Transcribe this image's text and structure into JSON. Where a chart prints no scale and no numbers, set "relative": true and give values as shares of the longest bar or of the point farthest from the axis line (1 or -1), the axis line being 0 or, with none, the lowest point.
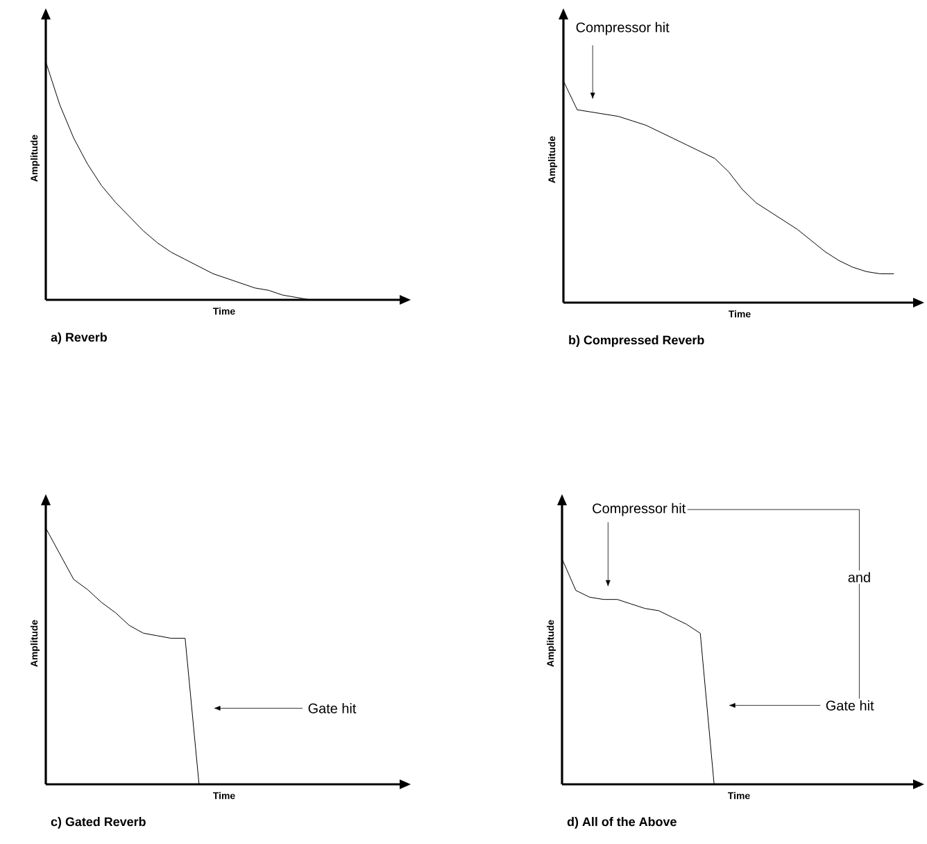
{
  "chart_data": [
    {
      "type": "line",
      "title": "a) Reverb",
      "xlabel": "Time",
      "ylabel": "Amplitude",
      "relative": true,
      "color": "#000000",
      "categories": [
        null,
        null,
        null,
        null,
        null,
        null,
        null,
        null,
        null,
        null,
        null,
        null,
        null,
        null,
        null,
        null,
        null,
        null,
        null,
        null,
        null,
        null,
        null,
        null,
        null,
        null
      ],
      "values": [
        1.0,
        0.82,
        0.68,
        0.57,
        0.48,
        0.41,
        0.35,
        0.29,
        0.24,
        0.2,
        0.17,
        0.14,
        0.11,
        0.09,
        0.07,
        0.05,
        0.04,
        0.02,
        0.01,
        0.0,
        null,
        null,
        null,
        null,
        null,
        null
      ]
    },
    {
      "type": "line",
      "title": "b) Compressed Reverb",
      "xlabel": "Time",
      "ylabel": "Amplitude",
      "relative": true,
      "color": "#000000",
      "categories": [
        null,
        null,
        null,
        null,
        null,
        null,
        null,
        null,
        null,
        null,
        null,
        null,
        null,
        null,
        null,
        null,
        null,
        null,
        null,
        null,
        null,
        null,
        null,
        null,
        null,
        null
      ],
      "values": [
        1.0,
        0.87,
        0.86,
        0.85,
        0.84,
        0.82,
        0.8,
        0.77,
        0.74,
        0.71,
        0.68,
        0.65,
        0.59,
        0.51,
        0.45,
        0.41,
        0.37,
        0.33,
        0.28,
        0.23,
        0.19,
        0.16,
        0.14,
        0.13,
        0.13,
        null
      ],
      "annotations": [
        "Compressor hit"
      ]
    },
    {
      "type": "line",
      "title": "c) Gated Reverb",
      "xlabel": "Time",
      "ylabel": "Amplitude",
      "relative": true,
      "color": "#000000",
      "categories": [
        null,
        null,
        null,
        null,
        null,
        null,
        null,
        null,
        null,
        null,
        null,
        null,
        null,
        null,
        null,
        null,
        null,
        null,
        null,
        null,
        null,
        null,
        null,
        null,
        null,
        null
      ],
      "values": [
        1.0,
        0.9,
        0.8,
        0.76,
        0.71,
        0.67,
        0.62,
        0.59,
        0.58,
        0.57,
        0.57,
        0.0,
        null,
        null,
        null,
        null,
        null,
        null,
        null,
        null,
        null,
        null,
        null,
        null,
        null,
        null
      ],
      "annotations": [
        "Gate hit"
      ]
    },
    {
      "type": "line",
      "title": "d) All of the Above",
      "xlabel": "Time",
      "ylabel": "Amplitude",
      "relative": true,
      "color": "#000000",
      "categories": [
        null,
        null,
        null,
        null,
        null,
        null,
        null,
        null,
        null,
        null,
        null,
        null,
        null,
        null,
        null,
        null,
        null,
        null,
        null,
        null,
        null,
        null,
        null,
        null,
        null,
        null
      ],
      "values": [
        1.0,
        0.86,
        0.83,
        0.82,
        0.82,
        0.8,
        0.78,
        0.77,
        0.74,
        0.71,
        0.67,
        0.0,
        null,
        null,
        null,
        null,
        null,
        null,
        null,
        null,
        null,
        null,
        null,
        null,
        null,
        null
      ],
      "annotations": [
        "Compressor hit",
        "and",
        "Gate hit"
      ]
    }
  ]
}
